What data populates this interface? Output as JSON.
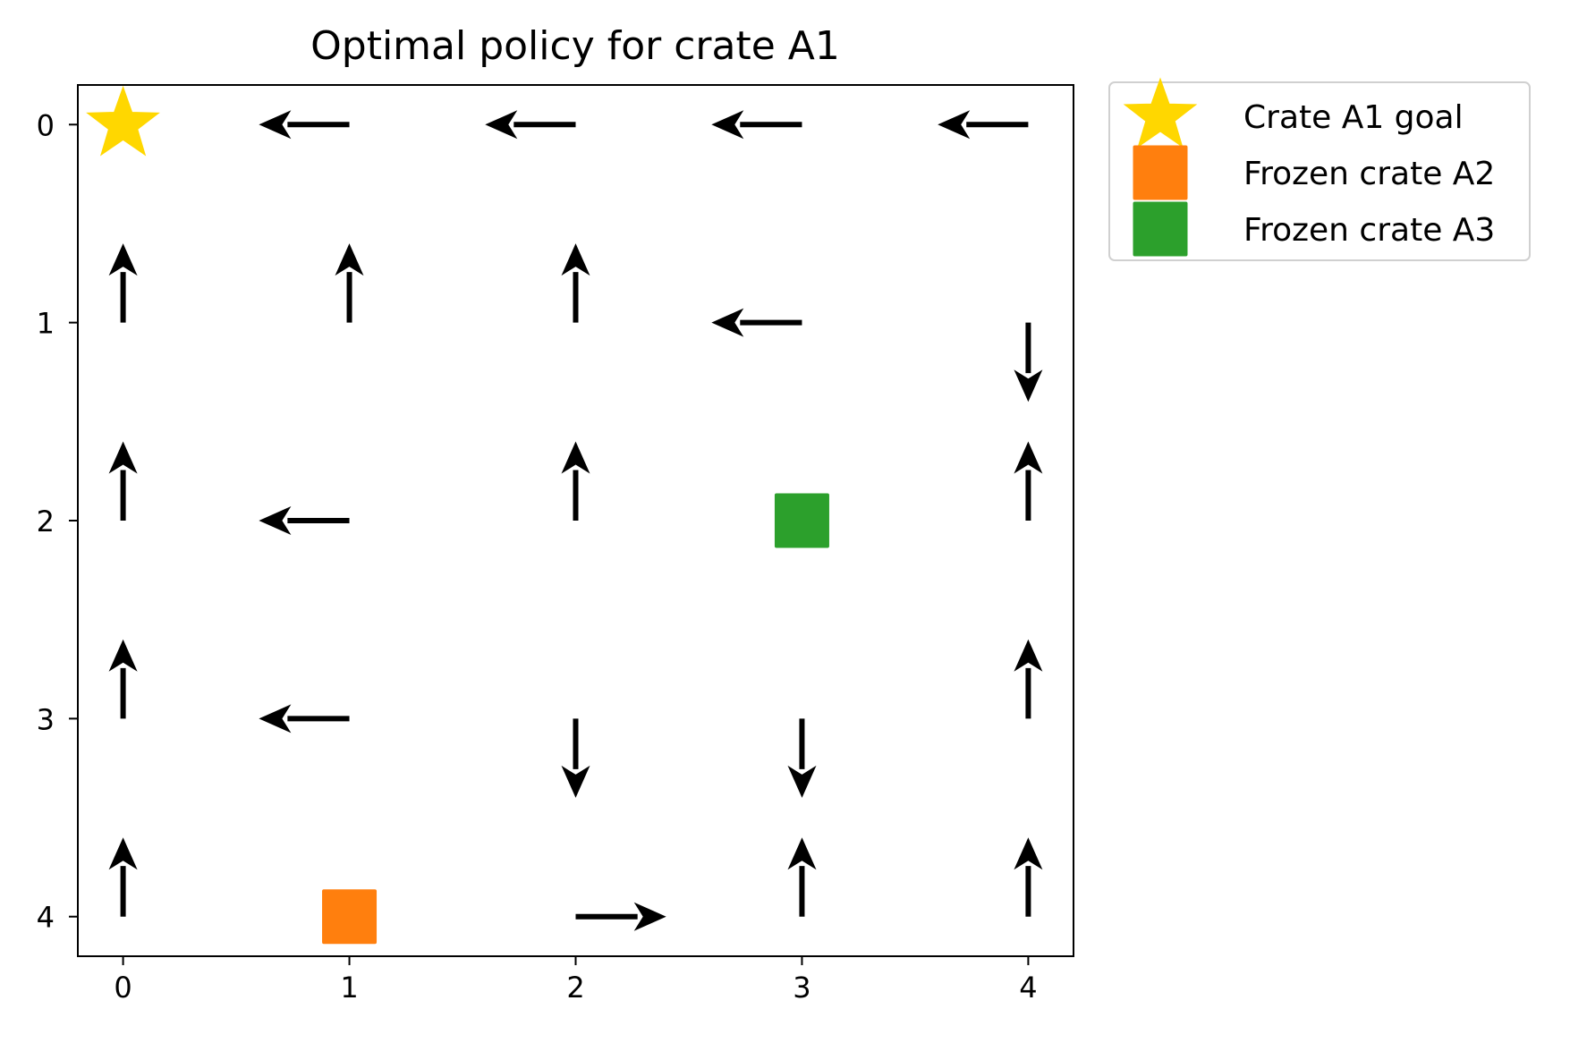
{
  "chart_data": {
    "type": "quiver",
    "title": "Optimal policy for crate A1",
    "xlabel": "",
    "ylabel": "",
    "xlim": [
      -0.2,
      4.2
    ],
    "ylim": [
      -0.2,
      4.2
    ],
    "y_inverted": true,
    "x_ticks": [
      "0",
      "1",
      "2",
      "3",
      "4"
    ],
    "y_ticks": [
      "0",
      "1",
      "2",
      "3",
      "4"
    ],
    "grid": false,
    "legend_position": "outside-upper-right",
    "arrows": [
      {
        "x": 1,
        "y": 0,
        "direction": "left"
      },
      {
        "x": 2,
        "y": 0,
        "direction": "left"
      },
      {
        "x": 3,
        "y": 0,
        "direction": "left"
      },
      {
        "x": 4,
        "y": 0,
        "direction": "left"
      },
      {
        "x": 0,
        "y": 1,
        "direction": "up"
      },
      {
        "x": 1,
        "y": 1,
        "direction": "up"
      },
      {
        "x": 2,
        "y": 1,
        "direction": "up"
      },
      {
        "x": 3,
        "y": 1,
        "direction": "left"
      },
      {
        "x": 4,
        "y": 1,
        "direction": "down"
      },
      {
        "x": 0,
        "y": 2,
        "direction": "up"
      },
      {
        "x": 1,
        "y": 2,
        "direction": "left"
      },
      {
        "x": 2,
        "y": 2,
        "direction": "up"
      },
      {
        "x": 4,
        "y": 2,
        "direction": "up"
      },
      {
        "x": 0,
        "y": 3,
        "direction": "up"
      },
      {
        "x": 1,
        "y": 3,
        "direction": "left"
      },
      {
        "x": 2,
        "y": 3,
        "direction": "down"
      },
      {
        "x": 3,
        "y": 3,
        "direction": "down"
      },
      {
        "x": 4,
        "y": 3,
        "direction": "up"
      },
      {
        "x": 0,
        "y": 4,
        "direction": "up"
      },
      {
        "x": 2,
        "y": 4,
        "direction": "right"
      },
      {
        "x": 3,
        "y": 4,
        "direction": "up"
      },
      {
        "x": 4,
        "y": 4,
        "direction": "up"
      }
    ],
    "markers": [
      {
        "label": "Crate A1 goal",
        "x": 0,
        "y": 0,
        "shape": "star",
        "color": "#FFD700"
      },
      {
        "label": "Frozen crate A2",
        "x": 1,
        "y": 4,
        "shape": "square",
        "color": "#FF7F0E"
      },
      {
        "label": "Frozen crate A3",
        "x": 3,
        "y": 2,
        "shape": "square",
        "color": "#2CA02C"
      }
    ],
    "arrow_color": "#000000"
  }
}
